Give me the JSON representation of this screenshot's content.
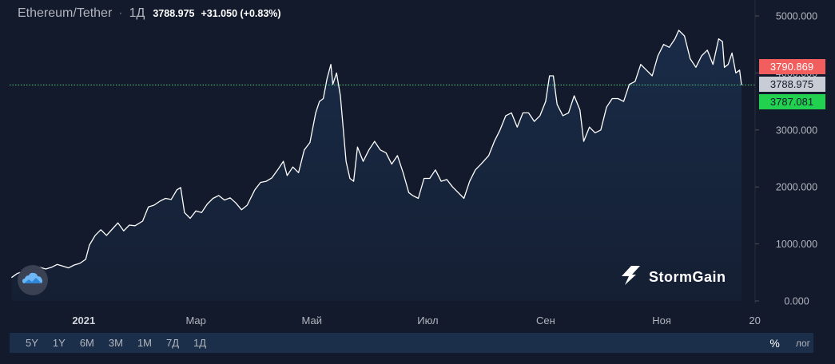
{
  "header": {
    "symbol": "Ethereum/Tether",
    "separator": "·",
    "interval": "1Д",
    "last_price": "3788.975",
    "change": "+31.050 (+0.83%)"
  },
  "price_scale": {
    "ask": "3790.869",
    "last": "3788.975",
    "bid": "3787.081",
    "ask_color": "#f25e5e",
    "last_color": "#c8ccd4",
    "bid_color": "#22d14f"
  },
  "brand": {
    "name": "StormGain"
  },
  "bottom_bar": {
    "ranges": [
      "5Y",
      "1Y",
      "6M",
      "3M",
      "1M",
      "7Д",
      "1Д"
    ],
    "percent_label": "%",
    "log_label": "лог"
  },
  "colors": {
    "background": "#131a2b",
    "line": "#ffffff",
    "last_price_line": "#4cd07a",
    "grid": "#1f2637"
  },
  "chart_data": {
    "type": "area",
    "title": "Ethereum/Tether",
    "xlabel": "",
    "ylabel": "",
    "x_range": [
      "2020-11-23",
      "2021-12-13"
    ],
    "ylim": [
      0,
      5000
    ],
    "grid": false,
    "y_ticks": [
      "5000.000",
      "4000.000",
      "3000.000",
      "2000.000",
      "1000.000",
      "0.000"
    ],
    "y_tick_values": [
      5000,
      4000,
      3000,
      2000,
      1000,
      0
    ],
    "x_ticks": [
      {
        "label": "2021",
        "date": "2021-01-01"
      },
      {
        "label": "Мар",
        "date": "2021-03-01"
      },
      {
        "label": "Май",
        "date": "2021-05-01"
      },
      {
        "label": "Июл",
        "date": "2021-07-01"
      },
      {
        "label": "Сен",
        "date": "2021-09-01"
      },
      {
        "label": "Ноя",
        "date": "2021-11-01"
      },
      {
        "label": "20",
        "date": "2021-12-20"
      }
    ],
    "series": [
      {
        "points": [
          [
            "2020-11-24",
            410
          ],
          [
            "2020-11-27",
            480
          ],
          [
            "2020-11-30",
            520
          ],
          [
            "2020-12-03",
            450
          ],
          [
            "2020-12-06",
            560
          ],
          [
            "2020-12-09",
            590
          ],
          [
            "2020-12-12",
            560
          ],
          [
            "2020-12-15",
            590
          ],
          [
            "2020-12-18",
            640
          ],
          [
            "2020-12-21",
            610
          ],
          [
            "2020-12-24",
            580
          ],
          [
            "2020-12-27",
            630
          ],
          [
            "2020-12-30",
            660
          ],
          [
            "2021-01-02",
            730
          ],
          [
            "2021-01-04",
            980
          ],
          [
            "2021-01-07",
            1150
          ],
          [
            "2021-01-10",
            1250
          ],
          [
            "2021-01-13",
            1150
          ],
          [
            "2021-01-16",
            1260
          ],
          [
            "2021-01-19",
            1370
          ],
          [
            "2021-01-22",
            1230
          ],
          [
            "2021-01-25",
            1330
          ],
          [
            "2021-01-28",
            1320
          ],
          [
            "2021-02-01",
            1400
          ],
          [
            "2021-02-04",
            1650
          ],
          [
            "2021-02-07",
            1680
          ],
          [
            "2021-02-10",
            1750
          ],
          [
            "2021-02-13",
            1800
          ],
          [
            "2021-02-16",
            1780
          ],
          [
            "2021-02-19",
            1950
          ],
          [
            "2021-02-21",
            1990
          ],
          [
            "2021-02-23",
            1550
          ],
          [
            "2021-02-26",
            1450
          ],
          [
            "2021-03-01",
            1580
          ],
          [
            "2021-03-04",
            1550
          ],
          [
            "2021-03-07",
            1700
          ],
          [
            "2021-03-10",
            1800
          ],
          [
            "2021-03-13",
            1850
          ],
          [
            "2021-03-16",
            1770
          ],
          [
            "2021-03-19",
            1810
          ],
          [
            "2021-03-22",
            1720
          ],
          [
            "2021-03-25",
            1600
          ],
          [
            "2021-03-28",
            1680
          ],
          [
            "2021-04-01",
            1950
          ],
          [
            "2021-04-04",
            2080
          ],
          [
            "2021-04-07",
            2100
          ],
          [
            "2021-04-10",
            2160
          ],
          [
            "2021-04-13",
            2300
          ],
          [
            "2021-04-16",
            2450
          ],
          [
            "2021-04-18",
            2200
          ],
          [
            "2021-04-21",
            2350
          ],
          [
            "2021-04-24",
            2250
          ],
          [
            "2021-04-27",
            2650
          ],
          [
            "2021-04-30",
            2780
          ],
          [
            "2021-05-03",
            3300
          ],
          [
            "2021-05-05",
            3500
          ],
          [
            "2021-05-07",
            3550
          ],
          [
            "2021-05-09",
            3900
          ],
          [
            "2021-05-11",
            4150
          ],
          [
            "2021-05-12",
            3800
          ],
          [
            "2021-05-14",
            4000
          ],
          [
            "2021-05-16",
            3600
          ],
          [
            "2021-05-19",
            2450
          ],
          [
            "2021-05-21",
            2150
          ],
          [
            "2021-05-23",
            2100
          ],
          [
            "2021-05-25",
            2700
          ],
          [
            "2021-05-28",
            2450
          ],
          [
            "2021-05-31",
            2650
          ],
          [
            "2021-06-03",
            2800
          ],
          [
            "2021-06-06",
            2650
          ],
          [
            "2021-06-09",
            2600
          ],
          [
            "2021-06-12",
            2400
          ],
          [
            "2021-06-15",
            2550
          ],
          [
            "2021-06-18",
            2250
          ],
          [
            "2021-06-21",
            1900
          ],
          [
            "2021-06-23",
            1850
          ],
          [
            "2021-06-26",
            1800
          ],
          [
            "2021-06-29",
            2150
          ],
          [
            "2021-07-02",
            2150
          ],
          [
            "2021-07-05",
            2300
          ],
          [
            "2021-07-08",
            2100
          ],
          [
            "2021-07-11",
            2130
          ],
          [
            "2021-07-14",
            2000
          ],
          [
            "2021-07-17",
            1900
          ],
          [
            "2021-07-20",
            1800
          ],
          [
            "2021-07-23",
            2100
          ],
          [
            "2021-07-26",
            2300
          ],
          [
            "2021-07-29",
            2400
          ],
          [
            "2021-08-02",
            2550
          ],
          [
            "2021-08-05",
            2800
          ],
          [
            "2021-08-08",
            3000
          ],
          [
            "2021-08-11",
            3250
          ],
          [
            "2021-08-14",
            3300
          ],
          [
            "2021-08-17",
            3050
          ],
          [
            "2021-08-20",
            3300
          ],
          [
            "2021-08-23",
            3300
          ],
          [
            "2021-08-26",
            3150
          ],
          [
            "2021-08-29",
            3250
          ],
          [
            "2021-09-01",
            3500
          ],
          [
            "2021-09-03",
            3950
          ],
          [
            "2021-09-05",
            3950
          ],
          [
            "2021-09-07",
            3450
          ],
          [
            "2021-09-10",
            3250
          ],
          [
            "2021-09-13",
            3300
          ],
          [
            "2021-09-16",
            3600
          ],
          [
            "2021-09-19",
            3350
          ],
          [
            "2021-09-21",
            2800
          ],
          [
            "2021-09-24",
            3050
          ],
          [
            "2021-09-27",
            2950
          ],
          [
            "2021-09-30",
            3000
          ],
          [
            "2021-10-03",
            3400
          ],
          [
            "2021-10-06",
            3550
          ],
          [
            "2021-10-09",
            3550
          ],
          [
            "2021-10-12",
            3500
          ],
          [
            "2021-10-15",
            3800
          ],
          [
            "2021-10-18",
            3850
          ],
          [
            "2021-10-21",
            4150
          ],
          [
            "2021-10-24",
            4050
          ],
          [
            "2021-10-27",
            3950
          ],
          [
            "2021-10-30",
            4300
          ],
          [
            "2021-11-02",
            4500
          ],
          [
            "2021-11-05",
            4450
          ],
          [
            "2021-11-08",
            4600
          ],
          [
            "2021-11-10",
            4750
          ],
          [
            "2021-11-13",
            4650
          ],
          [
            "2021-11-16",
            4250
          ],
          [
            "2021-11-19",
            4100
          ],
          [
            "2021-11-22",
            4300
          ],
          [
            "2021-11-25",
            4400
          ],
          [
            "2021-11-28",
            4150
          ],
          [
            "2021-12-01",
            4600
          ],
          [
            "2021-12-03",
            4550
          ],
          [
            "2021-12-04",
            4100
          ],
          [
            "2021-12-06",
            4150
          ],
          [
            "2021-12-08",
            4350
          ],
          [
            "2021-12-10",
            4000
          ],
          [
            "2021-12-12",
            4050
          ],
          [
            "2021-12-13",
            3789
          ]
        ]
      }
    ]
  }
}
